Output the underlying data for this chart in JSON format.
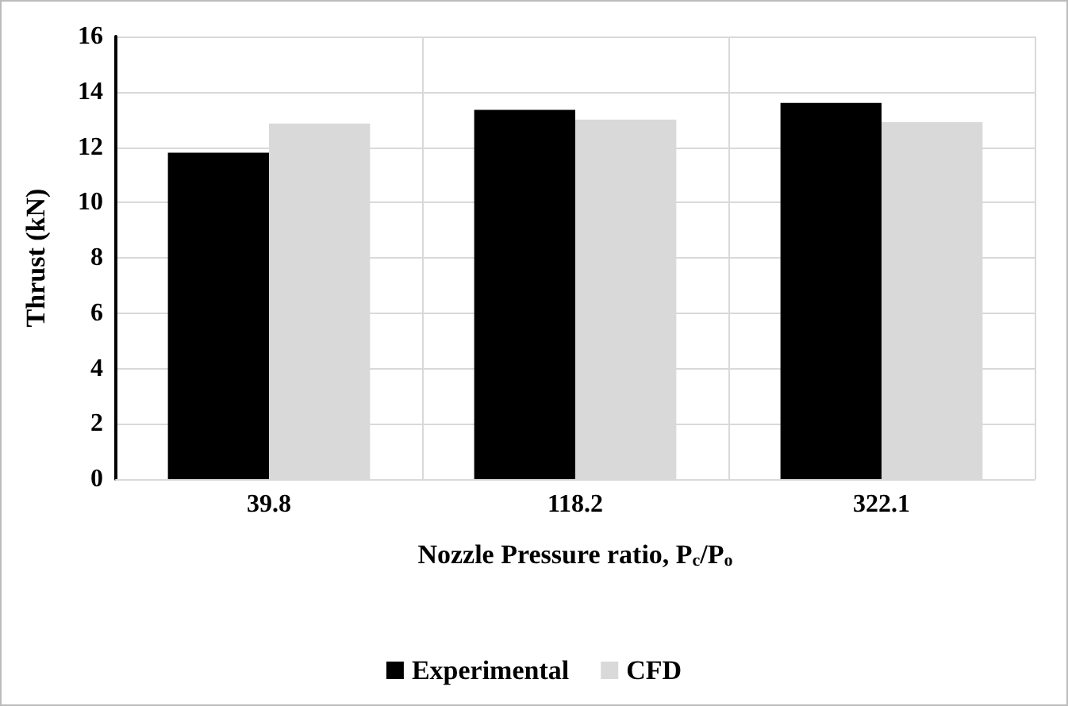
{
  "chart_data": {
    "type": "bar",
    "xlabel": "Nozzle Pressure ratio, P$_{c}$/P$_{o}$",
    "ylabel": "Thrust (kN)",
    "categories": [
      "39.8",
      "118.2",
      "322.1"
    ],
    "series": [
      {
        "name": "Experimental",
        "color": "#000000",
        "values": [
          11.8,
          13.35,
          13.6
        ]
      },
      {
        "name": "CFD",
        "color": "#d9d9d9",
        "values": [
          12.85,
          13.0,
          12.9
        ]
      }
    ],
    "ylim": [
      0,
      16
    ],
    "yticks": [
      0,
      2,
      4,
      6,
      8,
      10,
      12,
      14,
      16
    ],
    "grid": true,
    "legend": "bottom"
  }
}
